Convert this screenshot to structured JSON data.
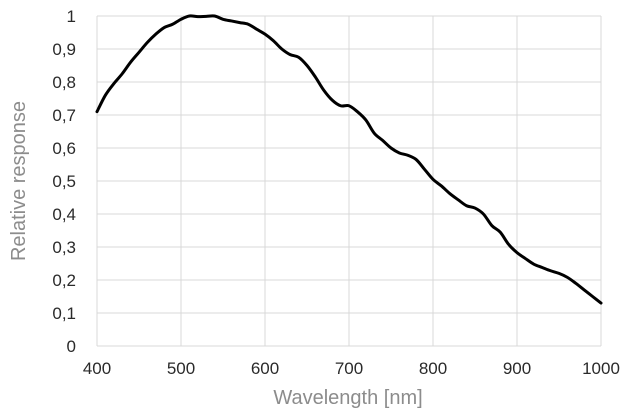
{
  "chart_data": {
    "type": "line",
    "title": "",
    "xlabel": "Wavelength [nm]",
    "ylabel": "Relative response",
    "xlim": [
      400,
      1000
    ],
    "ylim": [
      0,
      1
    ],
    "x_ticks": [
      400,
      500,
      600,
      700,
      800,
      900,
      1000
    ],
    "x_tick_labels": [
      "400",
      "500",
      "600",
      "700",
      "800",
      "900",
      "1000"
    ],
    "y_ticks": [
      0,
      0.1,
      0.2,
      0.3,
      0.4,
      0.5,
      0.6,
      0.7,
      0.8,
      0.9,
      1
    ],
    "y_tick_labels": [
      "0",
      "0,1",
      "0,2",
      "0,3",
      "0,4",
      "0,5",
      "0,6",
      "0,7",
      "0,8",
      "0,9",
      "1"
    ],
    "grid": true,
    "legend": "none",
    "line_color": "#000000",
    "grid_color": "#d9d9d9",
    "series": [
      {
        "x": [
          400,
          410,
          420,
          430,
          440,
          450,
          460,
          470,
          480,
          490,
          500,
          510,
          520,
          530,
          540,
          550,
          560,
          570,
          580,
          590,
          600,
          610,
          620,
          630,
          640,
          650,
          660,
          670,
          680,
          690,
          700,
          710,
          720,
          730,
          740,
          750,
          760,
          770,
          780,
          790,
          800,
          810,
          820,
          830,
          840,
          850,
          860,
          870,
          880,
          890,
          900,
          910,
          920,
          930,
          940,
          950,
          960,
          970,
          980,
          990,
          1000
        ],
        "y": [
          0.71,
          0.76,
          0.795,
          0.825,
          0.86,
          0.89,
          0.92,
          0.945,
          0.965,
          0.975,
          0.99,
          1.0,
          0.998,
          0.999,
          1.0,
          0.99,
          0.985,
          0.98,
          0.975,
          0.96,
          0.945,
          0.925,
          0.9,
          0.883,
          0.875,
          0.85,
          0.815,
          0.775,
          0.745,
          0.728,
          0.728,
          0.71,
          0.685,
          0.645,
          0.623,
          0.6,
          0.585,
          0.578,
          0.565,
          0.535,
          0.505,
          0.485,
          0.462,
          0.443,
          0.425,
          0.418,
          0.4,
          0.365,
          0.345,
          0.308,
          0.283,
          0.265,
          0.248,
          0.238,
          0.228,
          0.22,
          0.208,
          0.19,
          0.17,
          0.15,
          0.13
        ]
      }
    ]
  }
}
